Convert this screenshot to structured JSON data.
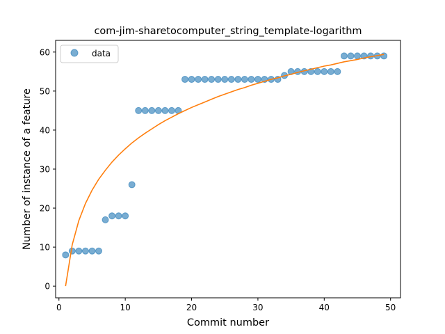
{
  "chart_data": {
    "type": "scatter",
    "title": "com-jim-sharetocomputer_string_template-logarithm",
    "xlabel": "Commit number",
    "ylabel": "Number of instance of a feature",
    "xlim": [
      -0.5,
      51.5
    ],
    "ylim": [
      -3,
      63
    ],
    "xticks": [
      0,
      10,
      20,
      30,
      40,
      50
    ],
    "yticks": [
      0,
      10,
      20,
      30,
      40,
      50,
      60
    ],
    "grid": false,
    "legend_position": "top-left",
    "series": [
      {
        "name": "data",
        "kind": "scatter",
        "color": "#1f77b4",
        "x": [
          1,
          2,
          3,
          4,
          5,
          6,
          7,
          8,
          9,
          10,
          11,
          12,
          13,
          14,
          15,
          16,
          17,
          18,
          19,
          20,
          21,
          22,
          23,
          24,
          25,
          26,
          27,
          28,
          29,
          30,
          31,
          32,
          33,
          34,
          35,
          36,
          37,
          38,
          39,
          40,
          41,
          42,
          43,
          44,
          45,
          46,
          47,
          48,
          49
        ],
        "y": [
          8,
          9,
          9,
          9,
          9,
          9,
          17,
          18,
          18,
          18,
          26,
          45,
          45,
          45,
          45,
          45,
          45,
          45,
          53,
          53,
          53,
          53,
          53,
          53,
          53,
          53,
          53,
          53,
          53,
          53,
          53,
          53,
          53,
          54,
          55,
          55,
          55,
          55,
          55,
          55,
          55,
          55,
          59,
          59,
          59,
          59,
          59,
          59,
          59
        ]
      },
      {
        "kind": "line",
        "color": "#ff7f0e",
        "x": [
          1,
          2,
          3,
          4,
          5,
          6,
          7,
          8,
          9,
          10,
          11,
          12,
          13,
          14,
          15,
          16,
          17,
          18,
          19,
          20,
          21,
          22,
          23,
          24,
          25,
          26,
          27,
          28,
          29,
          30,
          31,
          32,
          33,
          34,
          35,
          36,
          37,
          38,
          39,
          40,
          41,
          42,
          43,
          44,
          45,
          46,
          47,
          48,
          49
        ],
        "y": [
          0,
          10.6,
          16.8,
          21.2,
          24.6,
          27.4,
          29.7,
          31.8,
          33.6,
          35.2,
          36.7,
          38.0,
          39.2,
          40.3,
          41.4,
          42.4,
          43.3,
          44.2,
          45.0,
          45.8,
          46.5,
          47.2,
          47.9,
          48.6,
          49.2,
          49.8,
          50.4,
          50.9,
          51.5,
          52.0,
          52.5,
          53.0,
          53.4,
          53.9,
          54.3,
          54.8,
          55.2,
          55.6,
          56.0,
          56.4,
          56.7,
          57.1,
          57.5,
          57.8,
          58.1,
          58.5,
          58.8,
          59.1,
          59.4
        ]
      }
    ]
  }
}
